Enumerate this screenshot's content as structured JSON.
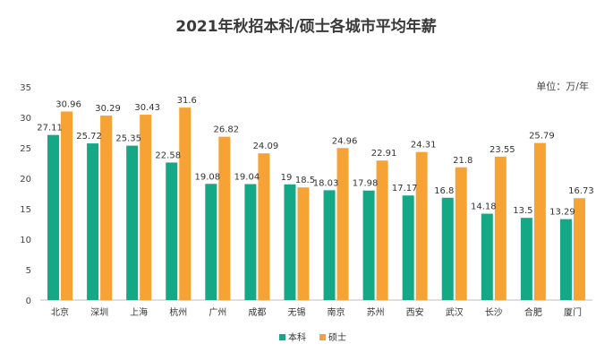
{
  "chart_data": {
    "type": "bar",
    "title": "2021年秋招本科/硕士各城市平均年薪",
    "unit_label": "单位：万/年",
    "categories": [
      "北京",
      "深圳",
      "上海",
      "杭州",
      "广州",
      "成都",
      "无锡",
      "南京",
      "苏州",
      "西安",
      "武汉",
      "长沙",
      "合肥",
      "厦门"
    ],
    "series": [
      {
        "name": "本科",
        "color": "#14a886",
        "values": [
          27.11,
          25.72,
          25.35,
          22.58,
          19.08,
          19.04,
          19,
          18.03,
          17.98,
          17.17,
          16.8,
          14.18,
          13.5,
          13.29
        ]
      },
      {
        "name": "硕士",
        "color": "#f7a234",
        "values": [
          30.96,
          30.29,
          30.43,
          31.6,
          26.82,
          24.09,
          18.5,
          24.96,
          22.91,
          24.31,
          21.8,
          23.55,
          25.79,
          16.73
        ]
      }
    ],
    "ylim": [
      0,
      35
    ],
    "yticks": [
      0,
      5,
      10,
      15,
      20,
      25,
      30,
      35
    ],
    "grid": false,
    "legend": "bottom-center"
  }
}
